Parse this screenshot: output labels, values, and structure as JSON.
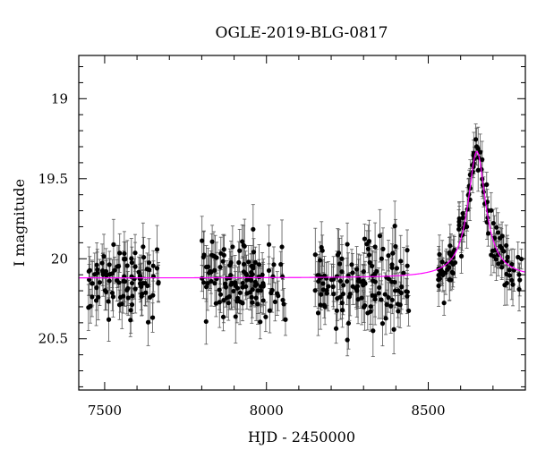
{
  "chart_data": {
    "type": "scatter",
    "title": "OGLE-2019-BLG-0817",
    "xlabel": "HJD - 2450000",
    "ylabel": "I magnitude",
    "xlim": [
      7420,
      8800
    ],
    "ylim": [
      20.82,
      18.73
    ],
    "y_inverted": true,
    "x_ticks": [
      7500,
      8000,
      8500
    ],
    "y_ticks": [
      19,
      19.5,
      20,
      20.5
    ],
    "x_tick_labels": [
      "7500",
      "8000",
      "8500"
    ],
    "y_tick_labels": [
      "19",
      "19.5",
      "20",
      "20.5"
    ],
    "grid": false,
    "legend": "none",
    "colors": {
      "points": "#000000",
      "model": "#ff00ff",
      "axes": "#000000"
    },
    "baseline_mag": 20.12,
    "seasons": [
      {
        "x_start": 7440,
        "x_end": 7670,
        "mean_mag": 20.13,
        "scatter": 0.16,
        "n": 95,
        "err_range": [
          0.08,
          0.16
        ]
      },
      {
        "x_start": 7800,
        "x_end": 8060,
        "mean_mag": 20.14,
        "scatter": 0.17,
        "n": 120,
        "err_range": [
          0.08,
          0.17
        ]
      },
      {
        "x_start": 8150,
        "x_end": 8440,
        "mean_mag": 20.15,
        "scatter": 0.17,
        "n": 130,
        "err_range": [
          0.08,
          0.17
        ]
      },
      {
        "x_start": 8530,
        "x_end": 8790,
        "mean_mag": 20.12,
        "scatter": 0.12,
        "n": 115,
        "err_range": [
          0.06,
          0.14
        ],
        "event": true
      }
    ],
    "model": {
      "t0": 8650,
      "peak_mag": 19.33,
      "baseline": 20.12,
      "half_width_days": 33
    }
  }
}
